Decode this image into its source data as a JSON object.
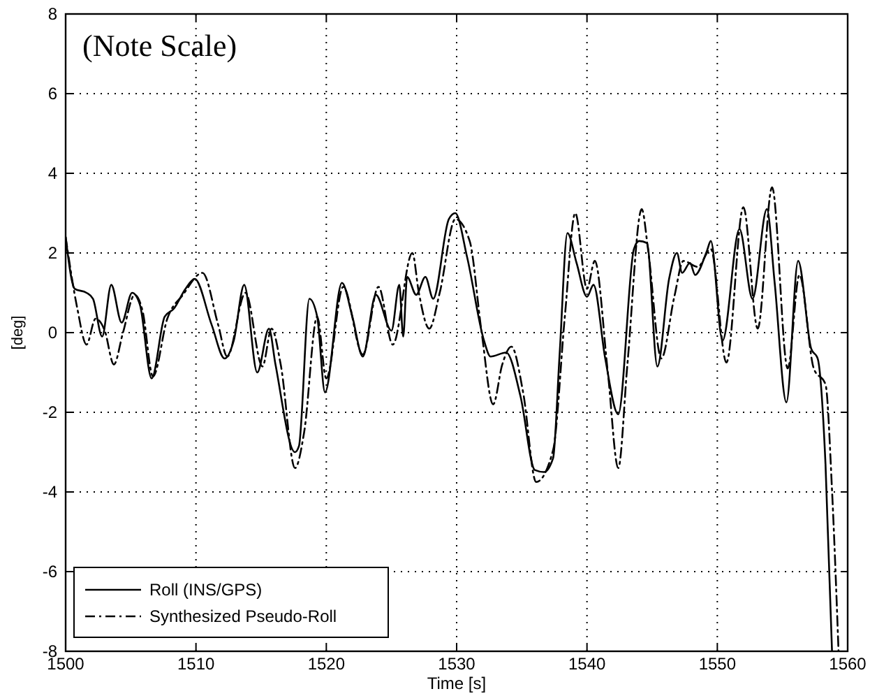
{
  "chart_data": {
    "type": "line",
    "xlabel": "Time [s]",
    "ylabel": "[deg]",
    "annotations": [
      "(Note Scale)"
    ],
    "xlim": [
      1500,
      1560
    ],
    "xticks": [
      1500,
      1510,
      1520,
      1530,
      1540,
      1550,
      1560
    ],
    "ylim": [
      -8,
      8
    ],
    "yticks": [
      -8,
      -6,
      -4,
      -2,
      0,
      2,
      4,
      6,
      8
    ],
    "grid": true,
    "legend": "bottom left",
    "marker": "none",
    "series": [
      {
        "name": "Roll (INS/GPS)",
        "color": "#000000",
        "line_style": "solid",
        "x": [
          1500,
          1500.7,
          1501.6,
          1502.1,
          1502.8,
          1503.5,
          1504.3,
          1505.1,
          1505.7,
          1506.6,
          1507.6,
          1508.3,
          1509.2,
          1509.9,
          1511.2,
          1512.2,
          1512.9,
          1513.7,
          1514.7,
          1515.6,
          1516.1,
          1517.6,
          1517.9,
          1518.7,
          1519.3,
          1519.9,
          1521.2,
          1522,
          1522.8,
          1523.8,
          1525,
          1525.6,
          1525.9,
          1526.2,
          1526.9,
          1527.6,
          1528.2,
          1529.4,
          1529.9,
          1530.8,
          1532.1,
          1532.6,
          1533.8,
          1534.9,
          1536,
          1536.7,
          1537.4,
          1537.9,
          1538.5,
          1539.2,
          1540,
          1540.5,
          1541.4,
          1542.4,
          1543.6,
          1544,
          1544.6,
          1545.4,
          1546.3,
          1546.9,
          1547.3,
          1547.9,
          1548.3,
          1549.2,
          1549.5,
          1550.4,
          1551.7,
          1552.7,
          1553.8,
          1554.4,
          1555.3,
          1556.2,
          1557.2,
          1557.7,
          1558.3,
          1558.8
        ],
        "values": [
          2.4,
          1.1,
          1.0,
          0.85,
          -0.1,
          1.2,
          0.25,
          1.0,
          0.7,
          -1.15,
          0.4,
          0.6,
          1.1,
          1.35,
          0.2,
          -0.65,
          -0.2,
          1.2,
          -1.0,
          0.1,
          -0.8,
          -3.0,
          -2.85,
          0.85,
          0.4,
          -1.5,
          1.25,
          0.4,
          -0.6,
          0.95,
          0.05,
          1.2,
          -0.1,
          1.4,
          0.95,
          1.4,
          0.85,
          2.85,
          3.0,
          1.9,
          -0.2,
          -0.6,
          -0.5,
          -1.6,
          -3.45,
          -3.5,
          -3.15,
          -0.55,
          2.5,
          1.75,
          0.9,
          1.2,
          -0.65,
          -2.05,
          2.1,
          2.3,
          2.25,
          -0.85,
          1.35,
          2.0,
          1.5,
          1.75,
          1.45,
          2.05,
          2.3,
          -0.2,
          2.6,
          0.85,
          3.1,
          1.25,
          -1.75,
          1.8,
          -0.4,
          -0.65,
          -3.3,
          -8
        ]
      },
      {
        "name": "Synthesized Pseudo-Roll",
        "color": "#000000",
        "line_style": "dashed",
        "x": [
          1500,
          1500.9,
          1501.6,
          1502.3,
          1503,
          1503.7,
          1504.4,
          1505.3,
          1505.9,
          1506.7,
          1507.8,
          1509,
          1510.5,
          1511.7,
          1512.4,
          1513.8,
          1515.1,
          1515.8,
          1516.5,
          1517.6,
          1518.3,
          1519.3,
          1520,
          1521.3,
          1522.8,
          1524,
          1525.1,
          1526.6,
          1527.1,
          1527.9,
          1528.7,
          1529.9,
          1531,
          1531.9,
          1532.8,
          1533.5,
          1534.2,
          1535.1,
          1536.1,
          1537.4,
          1538.3,
          1539.1,
          1540,
          1540.6,
          1541.6,
          1542.4,
          1543.1,
          1544.2,
          1544.7,
          1545.7,
          1546.7,
          1547.4,
          1548.5,
          1549.5,
          1550.7,
          1552,
          1553.1,
          1554.2,
          1555.4,
          1556.3,
          1557.4,
          1558.3,
          1558.8,
          1559.3
        ],
        "values": [
          2.4,
          0.6,
          -0.3,
          0.35,
          0.05,
          -0.8,
          0,
          0.95,
          0.55,
          -1.1,
          0.35,
          0.95,
          1.5,
          0.2,
          -0.6,
          1.0,
          -0.85,
          0.1,
          -0.8,
          -3.4,
          -2.5,
          0.4,
          -1.15,
          1.15,
          -0.55,
          1.15,
          -0.3,
          2.0,
          1.0,
          0.1,
          1.0,
          2.85,
          2.3,
          0.05,
          -1.8,
          -0.8,
          -0.35,
          -1.5,
          -3.75,
          -2.95,
          0.4,
          3.0,
          1.1,
          1.8,
          -1.0,
          -3.4,
          -0.8,
          3.1,
          2.05,
          -0.65,
          0.9,
          1.8,
          1.65,
          2.1,
          -0.75,
          3.15,
          0.1,
          3.65,
          -0.9,
          1.45,
          -0.9,
          -1.3,
          -3.95,
          -8
        ]
      }
    ]
  }
}
